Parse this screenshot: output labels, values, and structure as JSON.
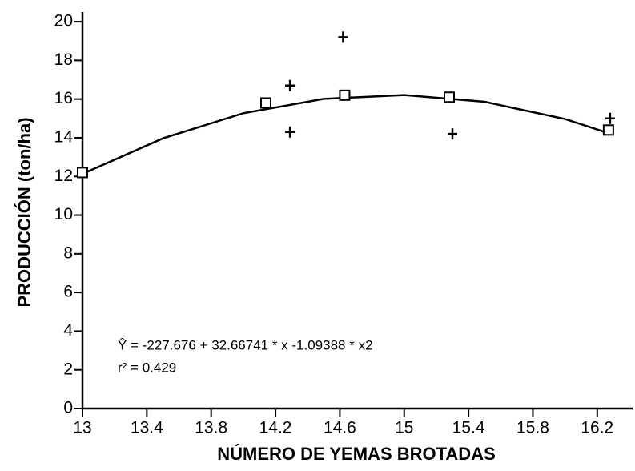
{
  "chart_data": {
    "type": "scatter",
    "xlabel": "NÚMERO DE YEMAS BROTADAS",
    "ylabel": "PRODUCCIÓN (ton/ha)",
    "annotations": [
      "Ŷ = -227.676 + 32.66741 * x -1.09388 * x2",
      "r² = 0.429"
    ],
    "xlim": [
      13,
      16.42
    ],
    "ylim": [
      0,
      20.5
    ],
    "xticks": [
      13,
      13.4,
      13.8,
      14.2,
      14.6,
      15,
      15.4,
      15.8,
      16.2
    ],
    "yticks": [
      0,
      2,
      4,
      6,
      8,
      10,
      12,
      14,
      16,
      18,
      20
    ],
    "series": [
      {
        "marker": "square",
        "color": "#000000",
        "x": [
          13,
          14.14,
          14.63,
          15.28,
          16.27
        ],
        "values": [
          12.2,
          15.8,
          16.2,
          16.1,
          14.4
        ]
      },
      {
        "marker": "plus",
        "color": "#000000",
        "x": [
          14.29,
          14.29,
          14.62,
          15.3,
          16.28
        ],
        "values": [
          16.7,
          14.3,
          19.2,
          14.2,
          15.0
        ]
      }
    ],
    "fit": {
      "color": "#000000",
      "x": [
        13,
        13.5,
        14,
        14.5,
        15,
        15.5,
        16,
        16.3
      ],
      "values": [
        12.13,
        13.97,
        15.27,
        16.01,
        16.21,
        15.86,
        14.97,
        14.16
      ]
    }
  }
}
